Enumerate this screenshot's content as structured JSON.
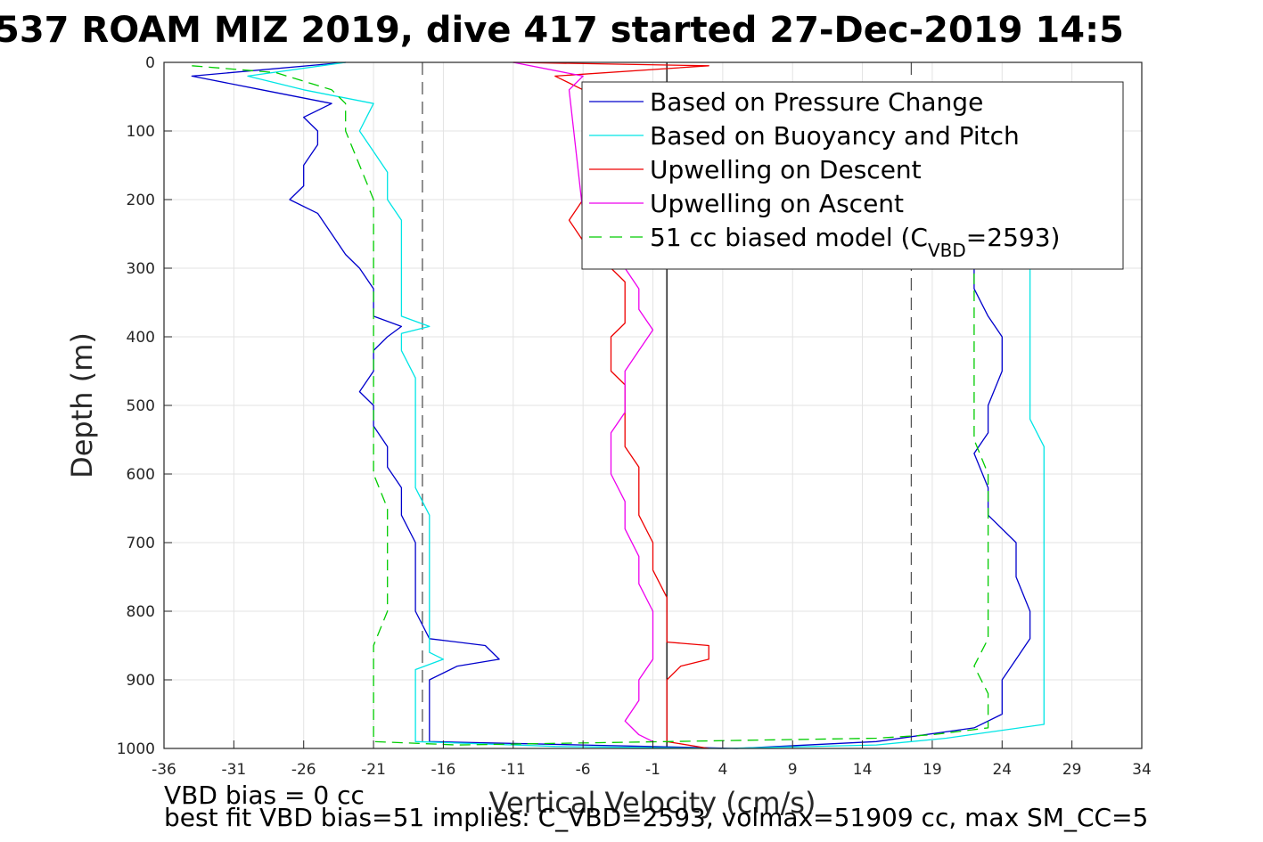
{
  "chart_data": {
    "type": "line",
    "title": "537 ROAM MIZ 2019, dive 417 started 27-Dec-2019 14:5",
    "xlabel": "Vertical Velocity (cm/s)",
    "ylabel": "Depth (m)",
    "xlim": [
      -36,
      34
    ],
    "ylim": [
      0,
      1000
    ],
    "y_reversed": true,
    "grid": true,
    "xticks": [
      -36,
      -31,
      -26,
      -21,
      -16,
      -11,
      -6,
      -1,
      4,
      9,
      14,
      19,
      24,
      29,
      34
    ],
    "yticks": [
      0,
      100,
      200,
      300,
      400,
      500,
      600,
      700,
      800,
      900,
      1000
    ],
    "vertical_lines": [
      {
        "x": -17.5,
        "style": "dashed",
        "color": "#555555"
      },
      {
        "x": 0,
        "style": "solid",
        "color": "#000000"
      },
      {
        "x": 17.5,
        "style": "dashed",
        "color": "#555555"
      }
    ],
    "legend": {
      "position": "top-right",
      "entries": [
        {
          "label": "Based on Pressure Change",
          "color": "#0000cc",
          "style": "solid"
        },
        {
          "label": "Based on Buoyancy and Pitch",
          "color": "#00e5e5",
          "style": "solid"
        },
        {
          "label": "Upwelling on Descent",
          "color": "#ee0000",
          "style": "solid"
        },
        {
          "label": "Upwelling on Ascent",
          "color": "#ee00ee",
          "style": "solid"
        },
        {
          "label": "51 cc biased model (C",
          "sub": "VBD",
          "suffix": "=2593)",
          "color": "#00cc00",
          "style": "dashed"
        }
      ]
    },
    "series": [
      {
        "name": "Based on Pressure Change",
        "color": "#0000cc",
        "dashed": false,
        "points": [
          [
            -23,
            0
          ],
          [
            -34,
            20
          ],
          [
            -29,
            40
          ],
          [
            -24,
            60
          ],
          [
            -26,
            80
          ],
          [
            -25,
            100
          ],
          [
            -25,
            120
          ],
          [
            -26,
            150
          ],
          [
            -26,
            180
          ],
          [
            -27,
            200
          ],
          [
            -25,
            220
          ],
          [
            -24,
            250
          ],
          [
            -23,
            280
          ],
          [
            -22,
            300
          ],
          [
            -21,
            330
          ],
          [
            -21,
            370
          ],
          [
            -19,
            385
          ],
          [
            -20,
            400
          ],
          [
            -21,
            420
          ],
          [
            -21,
            450
          ],
          [
            -22,
            480
          ],
          [
            -21,
            500
          ],
          [
            -21,
            530
          ],
          [
            -20,
            560
          ],
          [
            -20,
            590
          ],
          [
            -19,
            620
          ],
          [
            -19,
            660
          ],
          [
            -18,
            700
          ],
          [
            -18,
            750
          ],
          [
            -18,
            800
          ],
          [
            -17,
            840
          ],
          [
            -13,
            850
          ],
          [
            -12,
            870
          ],
          [
            -15,
            880
          ],
          [
            -17,
            900
          ],
          [
            -17,
            950
          ],
          [
            -17,
            990
          ],
          [
            -6,
            995
          ],
          [
            5,
            1000
          ],
          [
            15,
            990
          ],
          [
            22,
            970
          ],
          [
            24,
            950
          ],
          [
            24,
            900
          ],
          [
            25,
            870
          ],
          [
            26,
            840
          ],
          [
            26,
            800
          ],
          [
            25,
            750
          ],
          [
            25,
            700
          ],
          [
            23,
            660
          ],
          [
            23,
            620
          ],
          [
            22,
            570
          ],
          [
            23,
            540
          ],
          [
            23,
            500
          ],
          [
            24,
            450
          ],
          [
            24,
            400
          ],
          [
            23,
            370
          ],
          [
            22,
            330
          ],
          [
            22,
            300
          ]
        ]
      },
      {
        "name": "Based on Buoyancy and Pitch",
        "color": "#00e5e5",
        "dashed": false,
        "points": [
          [
            -23,
            0
          ],
          [
            -30,
            20
          ],
          [
            -26,
            40
          ],
          [
            -21,
            60
          ],
          [
            -22,
            100
          ],
          [
            -21,
            130
          ],
          [
            -20,
            160
          ],
          [
            -20,
            200
          ],
          [
            -19,
            230
          ],
          [
            -19,
            270
          ],
          [
            -19,
            300
          ],
          [
            -19,
            340
          ],
          [
            -19,
            370
          ],
          [
            -17,
            385
          ],
          [
            -19,
            395
          ],
          [
            -19,
            420
          ],
          [
            -18,
            460
          ],
          [
            -18,
            500
          ],
          [
            -18,
            520
          ],
          [
            -18,
            560
          ],
          [
            -18,
            590
          ],
          [
            -18,
            620
          ],
          [
            -17,
            660
          ],
          [
            -17,
            700
          ],
          [
            -17,
            760
          ],
          [
            -17,
            800
          ],
          [
            -17,
            840
          ],
          [
            -17,
            860
          ],
          [
            -16,
            870
          ],
          [
            -18,
            885
          ],
          [
            -18,
            900
          ],
          [
            -18,
            950
          ],
          [
            -18,
            990
          ],
          [
            -8,
            997
          ],
          [
            4,
            1000
          ],
          [
            15,
            995
          ],
          [
            20,
            985
          ],
          [
            27,
            965
          ],
          [
            27,
            940
          ],
          [
            27,
            900
          ],
          [
            27,
            870
          ],
          [
            27,
            830
          ],
          [
            27,
            800
          ],
          [
            27,
            760
          ],
          [
            27,
            720
          ],
          [
            27,
            680
          ],
          [
            27,
            640
          ],
          [
            27,
            600
          ],
          [
            27,
            560
          ],
          [
            26,
            520
          ],
          [
            26,
            480
          ],
          [
            26,
            440
          ],
          [
            26,
            400
          ],
          [
            26,
            360
          ],
          [
            26,
            320
          ],
          [
            26,
            300
          ]
        ]
      },
      {
        "name": "Upwelling on Descent",
        "color": "#ee0000",
        "dashed": false,
        "points": [
          [
            -11,
            0
          ],
          [
            3,
            5
          ],
          [
            -8,
            20
          ],
          [
            -6,
            40
          ],
          [
            -6,
            200
          ],
          [
            -7,
            230
          ],
          [
            -6,
            260
          ],
          [
            -5,
            290
          ],
          [
            -4,
            300
          ],
          [
            -3,
            320
          ],
          [
            -3,
            350
          ],
          [
            -3,
            380
          ],
          [
            -4,
            400
          ],
          [
            -4,
            430
          ],
          [
            -4,
            450
          ],
          [
            -3,
            470
          ],
          [
            -3,
            500
          ],
          [
            -3,
            530
          ],
          [
            -3,
            560
          ],
          [
            -2,
            590
          ],
          [
            -2,
            620
          ],
          [
            -2,
            660
          ],
          [
            -1,
            700
          ],
          [
            -1,
            740
          ],
          [
            0,
            780
          ],
          [
            0,
            820
          ],
          [
            0,
            845
          ],
          [
            3,
            850
          ],
          [
            3,
            870
          ],
          [
            1,
            880
          ],
          [
            0,
            900
          ],
          [
            0,
            950
          ],
          [
            0,
            990
          ],
          [
            3,
            1000
          ]
        ]
      },
      {
        "name": "Upwelling on Ascent",
        "color": "#ee00ee",
        "dashed": false,
        "points": [
          [
            -11,
            0
          ],
          [
            -6,
            20
          ],
          [
            -7,
            40
          ],
          [
            -6,
            220
          ],
          [
            -5,
            250
          ],
          [
            -3,
            300
          ],
          [
            -2,
            330
          ],
          [
            -2,
            360
          ],
          [
            -1,
            390
          ],
          [
            -2,
            420
          ],
          [
            -3,
            450
          ],
          [
            -3,
            480
          ],
          [
            -3,
            510
          ],
          [
            -4,
            540
          ],
          [
            -4,
            570
          ],
          [
            -4,
            600
          ],
          [
            -3,
            640
          ],
          [
            -3,
            680
          ],
          [
            -2,
            720
          ],
          [
            -2,
            760
          ],
          [
            -1,
            800
          ],
          [
            -1,
            840
          ],
          [
            -1,
            870
          ],
          [
            -2,
            900
          ],
          [
            -2,
            930
          ],
          [
            -3,
            960
          ],
          [
            -2,
            980
          ],
          [
            -1,
            990
          ]
        ]
      },
      {
        "name": "51 cc biased model (C_VBD=2593)",
        "color": "#00cc00",
        "dashed": true,
        "points": [
          [
            -34,
            5
          ],
          [
            -28,
            15
          ],
          [
            -24,
            40
          ],
          [
            -23,
            60
          ],
          [
            -23,
            100
          ],
          [
            -22,
            150
          ],
          [
            -21,
            200
          ],
          [
            -21,
            250
          ],
          [
            -21,
            300
          ],
          [
            -21,
            350
          ],
          [
            -21,
            400
          ],
          [
            -21,
            450
          ],
          [
            -21,
            500
          ],
          [
            -21,
            550
          ],
          [
            -21,
            600
          ],
          [
            -20,
            650
          ],
          [
            -20,
            700
          ],
          [
            -20,
            750
          ],
          [
            -20,
            800
          ],
          [
            -21,
            850
          ],
          [
            -21,
            900
          ],
          [
            -21,
            950
          ],
          [
            -21,
            990
          ],
          [
            -15,
            995
          ],
          [
            15,
            985
          ],
          [
            19,
            980
          ],
          [
            23,
            970
          ],
          [
            23,
            920
          ],
          [
            22,
            880
          ],
          [
            23,
            840
          ],
          [
            23,
            800
          ],
          [
            23,
            750
          ],
          [
            23,
            700
          ],
          [
            23,
            650
          ],
          [
            23,
            600
          ],
          [
            22,
            550
          ],
          [
            22,
            500
          ],
          [
            22,
            450
          ],
          [
            22,
            400
          ],
          [
            22,
            360
          ],
          [
            22,
            320
          ],
          [
            22,
            300
          ]
        ]
      }
    ]
  },
  "footer": {
    "line1": "VBD bias = 0 cc",
    "line2": "best fit VBD bias=51 implies: C_VBD=2593, volmax=51909 cc, max SM_CC=5"
  }
}
